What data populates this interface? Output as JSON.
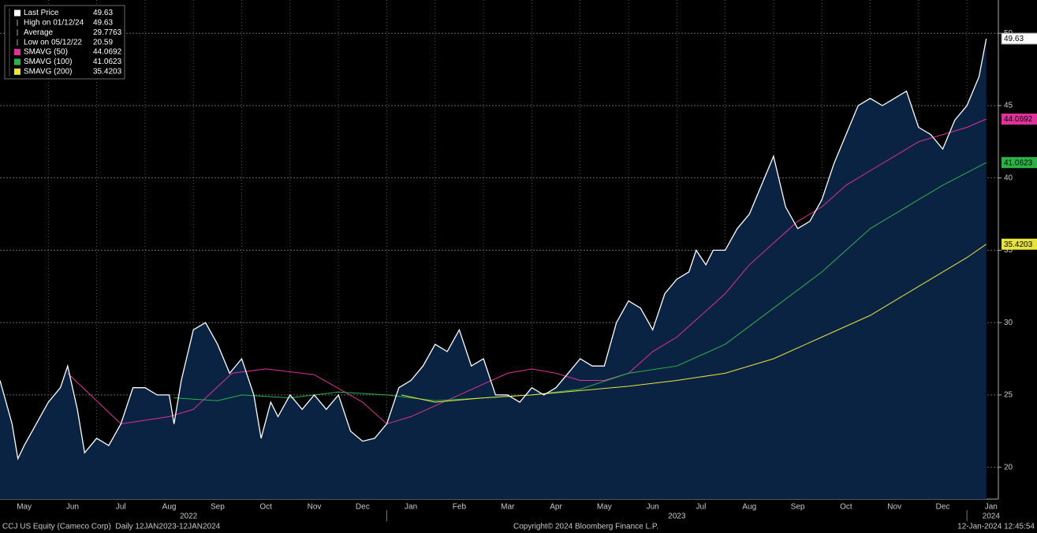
{
  "chart_data": {
    "type": "line",
    "xlim": [
      0,
      20.65
    ],
    "ylim": [
      17.8,
      52.3
    ],
    "yticks": [
      20,
      25,
      30,
      35,
      40,
      45,
      50
    ],
    "xticks": [
      {
        "value": 0.5,
        "label": "May"
      },
      {
        "value": 1.5,
        "label": "Jun"
      },
      {
        "value": 2.5,
        "label": "Jul"
      },
      {
        "value": 3.5,
        "label": "Aug"
      },
      {
        "value": 4.5,
        "label": "Sep"
      },
      {
        "value": 5.5,
        "label": "Oct"
      },
      {
        "value": 6.5,
        "label": "Nov"
      },
      {
        "value": 7.5,
        "label": "Dec"
      },
      {
        "value": 8.5,
        "label": "Jan"
      },
      {
        "value": 9.5,
        "label": "Feb"
      },
      {
        "value": 10.5,
        "label": "Mar"
      },
      {
        "value": 11.5,
        "label": "Apr"
      },
      {
        "value": 12.5,
        "label": "May"
      },
      {
        "value": 13.5,
        "label": "Jun"
      },
      {
        "value": 14.5,
        "label": "Jul"
      },
      {
        "value": 15.5,
        "label": "Aug"
      },
      {
        "value": 16.5,
        "label": "Sep"
      },
      {
        "value": 17.5,
        "label": "Oct"
      },
      {
        "value": 18.5,
        "label": "Nov"
      },
      {
        "value": 19.5,
        "label": "Dec"
      },
      {
        "value": 20.5,
        "label": "Jan"
      }
    ],
    "year_labels": [
      "2022",
      "2023",
      "2024"
    ],
    "grid": true,
    "area_color": "#0a2342",
    "series": [
      {
        "name": "Last Price",
        "color": "#ffffff",
        "x": [
          0,
          0.25,
          0.37,
          0.5,
          0.75,
          1,
          1.25,
          1.4,
          1.6,
          1.75,
          2,
          2.25,
          2.5,
          2.75,
          3,
          3.25,
          3.5,
          3.6,
          3.75,
          4,
          4.25,
          4.5,
          4.75,
          5,
          5.25,
          5.4,
          5.6,
          5.75,
          6,
          6.25,
          6.5,
          6.75,
          7,
          7.25,
          7.5,
          7.75,
          8,
          8.25,
          8.5,
          8.75,
          9,
          9.25,
          9.5,
          9.75,
          10,
          10.25,
          10.5,
          10.75,
          11,
          11.25,
          11.5,
          11.75,
          12,
          12.25,
          12.5,
          12.75,
          13,
          13.25,
          13.5,
          13.75,
          14,
          14.25,
          14.4,
          14.6,
          14.75,
          15,
          15.25,
          15.5,
          15.75,
          16,
          16.25,
          16.5,
          16.75,
          17,
          17.25,
          17.5,
          17.75,
          18,
          18.25,
          18.5,
          18.75,
          19,
          19.25,
          19.5,
          19.75,
          20,
          20.25,
          20.4
        ],
        "values": [
          26,
          23,
          20.59,
          21.5,
          23,
          24.5,
          25.5,
          27,
          24,
          21,
          22,
          21.5,
          23,
          25.5,
          25.5,
          25,
          25,
          23,
          26,
          29.5,
          30,
          28.5,
          26.5,
          27.5,
          25,
          22,
          24.5,
          23.5,
          25,
          24,
          25,
          24,
          25,
          22.5,
          21.8,
          22,
          23,
          25.5,
          26,
          27,
          28.5,
          28,
          29.5,
          27,
          27.5,
          25,
          25,
          24.5,
          25.5,
          25,
          25.5,
          26.5,
          27.5,
          27,
          27,
          30,
          31.5,
          31,
          29.5,
          32,
          33,
          33.5,
          35,
          34,
          35,
          35,
          36.5,
          37.5,
          39.5,
          41.5,
          38,
          36.5,
          37,
          38.5,
          41,
          43,
          45,
          45.5,
          45,
          45.5,
          46,
          43.5,
          43,
          42,
          44,
          45,
          47,
          49.63
        ]
      },
      {
        "name": "SMAVG (50)",
        "color": "#e0309a",
        "x": [
          1.4,
          2.5,
          3.5,
          4,
          4.8,
          5.5,
          6.5,
          7.5,
          8,
          8.5,
          9.5,
          10.5,
          11,
          11.5,
          12,
          12.5,
          13,
          13.5,
          14,
          14.5,
          15,
          15.5,
          16,
          16.5,
          17,
          17.5,
          18,
          18.5,
          19,
          19.5,
          20,
          20.4
        ],
        "values": [
          26.5,
          23,
          23.5,
          24,
          26.5,
          26.8,
          26.4,
          24.5,
          23,
          23.5,
          25,
          26.5,
          26.8,
          26.5,
          26,
          26,
          26.5,
          28,
          29,
          30.5,
          32,
          34,
          35.5,
          37,
          38,
          39.5,
          40.5,
          41.5,
          42.5,
          43,
          43.5,
          44.0692
        ]
      },
      {
        "name": "SMAVG (100)",
        "color": "#2bb34a",
        "x": [
          3.6,
          4.5,
          5,
          6,
          7,
          8,
          9,
          10,
          11,
          12,
          13,
          14,
          15,
          16,
          17,
          18,
          19,
          19.5,
          20.4
        ],
        "values": [
          24.8,
          24.6,
          25,
          24.8,
          25.2,
          25,
          24.6,
          24.8,
          25,
          25.4,
          26.5,
          27,
          28.5,
          31,
          33.5,
          36.5,
          38.5,
          39.5,
          41.0623
        ]
      },
      {
        "name": "SMAVG (200)",
        "color": "#e8e43a",
        "x": [
          8.3,
          9,
          10,
          11,
          12,
          13,
          14,
          15,
          16,
          17,
          18,
          19,
          20,
          20.4
        ],
        "values": [
          25,
          24.5,
          24.8,
          25,
          25.3,
          25.6,
          26,
          26.5,
          27.5,
          29,
          30.5,
          32.5,
          34.5,
          35.4203
        ]
      }
    ],
    "stats": [
      {
        "label": "High on 01/12/24",
        "value": 49.63
      },
      {
        "label": "Average",
        "value": 29.7763
      },
      {
        "label": "Low on 05/12/22",
        "value": 20.59
      }
    ],
    "footer": {
      "left": "CCJ US Equity (Cameco Corp)  Daily 12JAN2023-12JAN2024",
      "center": "Copyright© 2024 Bloomberg Finance L.P.",
      "right": "12-Jan-2024 12:45:54"
    }
  }
}
